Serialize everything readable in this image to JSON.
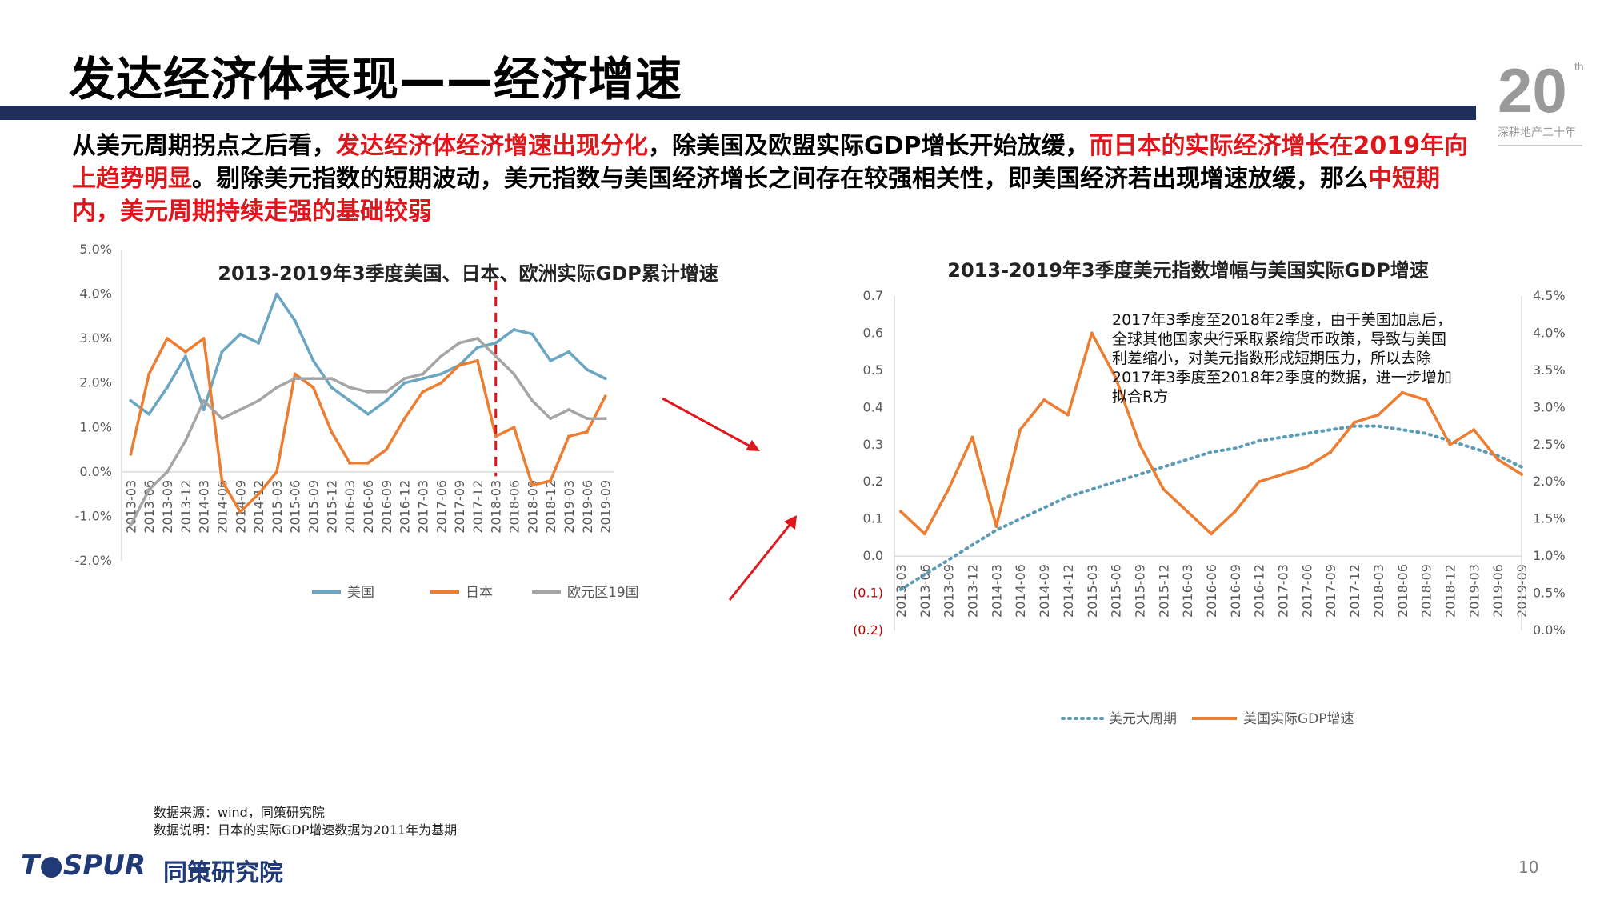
{
  "page": {
    "title": "发达经济体表现——经济增速",
    "paragraph": [
      {
        "text": "从美元周期拐点之后看，",
        "red": false
      },
      {
        "text": "发达经济体经济增速出现分化",
        "red": true
      },
      {
        "text": "，除美国及欧盟实际GDP增长开始放缓，",
        "red": false
      },
      {
        "text": "而日本的实际经济增长在2019年向上趋势明显",
        "red": true
      },
      {
        "text": "。剔除美元指数的短期波动，美元指数与美国经济增长之间存在较强相关性，即美国经济若出现增速放缓，那么",
        "red": false
      },
      {
        "text": "中短期内，美元周期持续走强的基础较弱",
        "red": true
      }
    ],
    "source_line1": "数据来源：wind，同策研究院",
    "source_line2": "数据说明：日本的实际GDP增速数据为2011年为基期",
    "brand": "T●SPUR",
    "brand_cn": "同策研究院",
    "page_number": "10",
    "logo_text": "20",
    "logo_sup": "th",
    "logo_caption": "深耕地产二十年"
  },
  "colors": {
    "us": "#6aa6c2",
    "japan": "#ed7d31",
    "euro": "#a5a5a5",
    "dollar": "#5b9bb5",
    "arrow": "#e0161d",
    "bar": "#1f2f5a"
  },
  "chart_data": [
    {
      "type": "line",
      "title": "2013-2019年3季度美国、日本、欧洲实际GDP累计增速",
      "categories": [
        "2013-03",
        "2013-06",
        "2013-09",
        "2013-12",
        "2014-03",
        "2014-06",
        "2014-09",
        "2014-12",
        "2015-03",
        "2015-06",
        "2015-09",
        "2015-12",
        "2016-03",
        "2016-06",
        "2016-09",
        "2016-12",
        "2017-03",
        "2017-06",
        "2017-09",
        "2017-12",
        "2018-03",
        "2018-06",
        "2018-09",
        "2018-12",
        "2019-03",
        "2019-06",
        "2019-09"
      ],
      "ylim": [
        -2.0,
        5.0
      ],
      "yticks": [
        "5.0%",
        "4.0%",
        "3.0%",
        "2.0%",
        "1.0%",
        "0.0%",
        "-1.0%",
        "-2.0%"
      ],
      "series": [
        {
          "name": "美国",
          "values": [
            1.6,
            1.3,
            1.9,
            2.6,
            1.4,
            2.7,
            3.1,
            2.9,
            4.0,
            3.4,
            2.5,
            1.9,
            1.6,
            1.3,
            1.6,
            2.0,
            2.1,
            2.2,
            2.4,
            2.8,
            2.9,
            3.2,
            3.1,
            2.5,
            2.7,
            2.3,
            2.1
          ]
        },
        {
          "name": "日本",
          "values": [
            0.4,
            2.2,
            3.0,
            2.7,
            3.0,
            -0.2,
            -0.9,
            -0.5,
            0.0,
            2.2,
            1.9,
            0.9,
            0.2,
            0.2,
            0.5,
            1.2,
            1.8,
            2.0,
            2.4,
            2.5,
            0.8,
            1.0,
            -0.3,
            -0.2,
            0.8,
            0.9,
            1.7
          ]
        },
        {
          "name": "欧元区19国",
          "values": [
            -1.2,
            -0.4,
            0.0,
            0.7,
            1.6,
            1.2,
            1.4,
            1.6,
            1.9,
            2.1,
            2.1,
            2.1,
            1.9,
            1.8,
            1.8,
            2.1,
            2.2,
            2.6,
            2.9,
            3.0,
            2.6,
            2.2,
            1.6,
            1.2,
            1.4,
            1.2,
            1.2
          ]
        }
      ],
      "dashed_marker_at": "2018-03"
    },
    {
      "type": "line",
      "title": "2013-2019年3季度美元指数增幅与美国实际GDP增速",
      "categories": [
        "2013-03",
        "2013-06",
        "2013-09",
        "2013-12",
        "2014-03",
        "2014-06",
        "2014-09",
        "2014-12",
        "2015-03",
        "2015-06",
        "2015-09",
        "2015-12",
        "2016-03",
        "2016-06",
        "2016-09",
        "2016-12",
        "2017-03",
        "2017-06",
        "2017-09",
        "2017-12",
        "2018-03",
        "2018-06",
        "2018-09",
        "2018-12",
        "2019-03",
        "2019-06",
        "2019-09"
      ],
      "ylim_left": [
        -0.2,
        0.7
      ],
      "ylim_right": [
        0.0,
        4.5
      ],
      "yticks_left": [
        "0.7",
        "0.6",
        "0.5",
        "0.4",
        "0.3",
        "0.2",
        "0.1",
        "0.0",
        "(0.1)",
        "(0.2)"
      ],
      "yticks_right": [
        "4.5%",
        "4.0%",
        "3.5%",
        "3.0%",
        "2.5%",
        "2.0%",
        "1.5%",
        "1.0%",
        "0.5%",
        "0.0%"
      ],
      "series": [
        {
          "name": "美元大周期",
          "axis": "left",
          "values": [
            -0.09,
            -0.05,
            -0.01,
            0.03,
            0.07,
            0.1,
            0.13,
            0.16,
            0.18,
            0.2,
            0.22,
            0.24,
            0.26,
            0.28,
            0.29,
            0.31,
            0.32,
            0.33,
            0.34,
            0.35,
            0.35,
            0.34,
            0.33,
            0.31,
            0.29,
            0.27,
            0.24
          ]
        },
        {
          "name": "美国实际GDP增速",
          "axis": "right",
          "values": [
            1.6,
            1.3,
            1.9,
            2.6,
            1.4,
            2.7,
            3.1,
            2.9,
            4.0,
            3.4,
            2.5,
            1.9,
            1.6,
            1.3,
            1.6,
            2.0,
            2.1,
            2.2,
            2.4,
            2.8,
            2.9,
            3.2,
            3.1,
            2.5,
            2.7,
            2.3,
            2.1
          ]
        }
      ],
      "annotation": [
        "2017年3季度至2018年2季度，由于美国加息后，",
        "全球其他国家央行采取紧缩货币政策，导致与美国",
        "利差缩小，对美元指数形成短期压力，所以去除",
        "2017年3季度至2018年2季度的数据，进一步增加",
        "拟合R方"
      ]
    }
  ]
}
